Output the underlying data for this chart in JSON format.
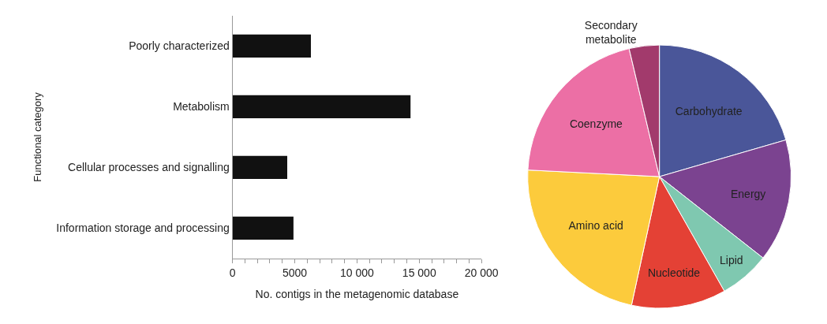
{
  "chart_data": [
    {
      "type": "bar",
      "orientation": "horizontal",
      "ylabel": "Functional category",
      "xlabel": "No. contigs in the metagenomic database",
      "categories": [
        "Poorly characterized",
        "Metabolism",
        "Cellular processes and signalling",
        "Information storage and processing"
      ],
      "values": [
        6300,
        14300,
        4400,
        4900
      ],
      "color": "#111111",
      "xlim": [
        0,
        20000
      ],
      "xticks": [
        0,
        {
          "value": 1000,
          "label": null
        },
        {
          "value": 2000,
          "label": null
        },
        {
          "value": 3000,
          "label": null
        },
        {
          "value": 4000,
          "label": null
        },
        5000,
        {
          "value": 6000,
          "label": null
        },
        {
          "value": 7000,
          "label": null
        },
        {
          "value": 8000,
          "label": null
        },
        {
          "value": 9000,
          "label": null
        },
        {
          "value": 10000,
          "label": "10 000"
        },
        {
          "value": 11000,
          "label": null
        },
        {
          "value": 12000,
          "label": null
        },
        {
          "value": 13000,
          "label": null
        },
        {
          "value": 14000,
          "label": null
        },
        {
          "value": 15000,
          "label": "15 000"
        },
        {
          "value": 16000,
          "label": null
        },
        {
          "value": 17000,
          "label": null
        },
        {
          "value": 18000,
          "label": null
        },
        {
          "value": 19000,
          "label": null
        },
        {
          "value": 20000,
          "label": "20 000"
        }
      ]
    },
    {
      "type": "pie",
      "categories": [
        "Carbohydrate",
        "Energy",
        "Lipid",
        "Nucleotide",
        "Amino acid",
        "Coenzyme",
        "Secondary metabolite"
      ],
      "values": [
        20.5,
        15.1,
        6.2,
        11.6,
        22.4,
        20.5,
        3.7
      ],
      "colors": [
        "#4a5699",
        "#7b4390",
        "#7fc8b0",
        "#e44135",
        "#fccb3c",
        "#ec6fa5",
        "#a23a6c"
      ]
    }
  ]
}
